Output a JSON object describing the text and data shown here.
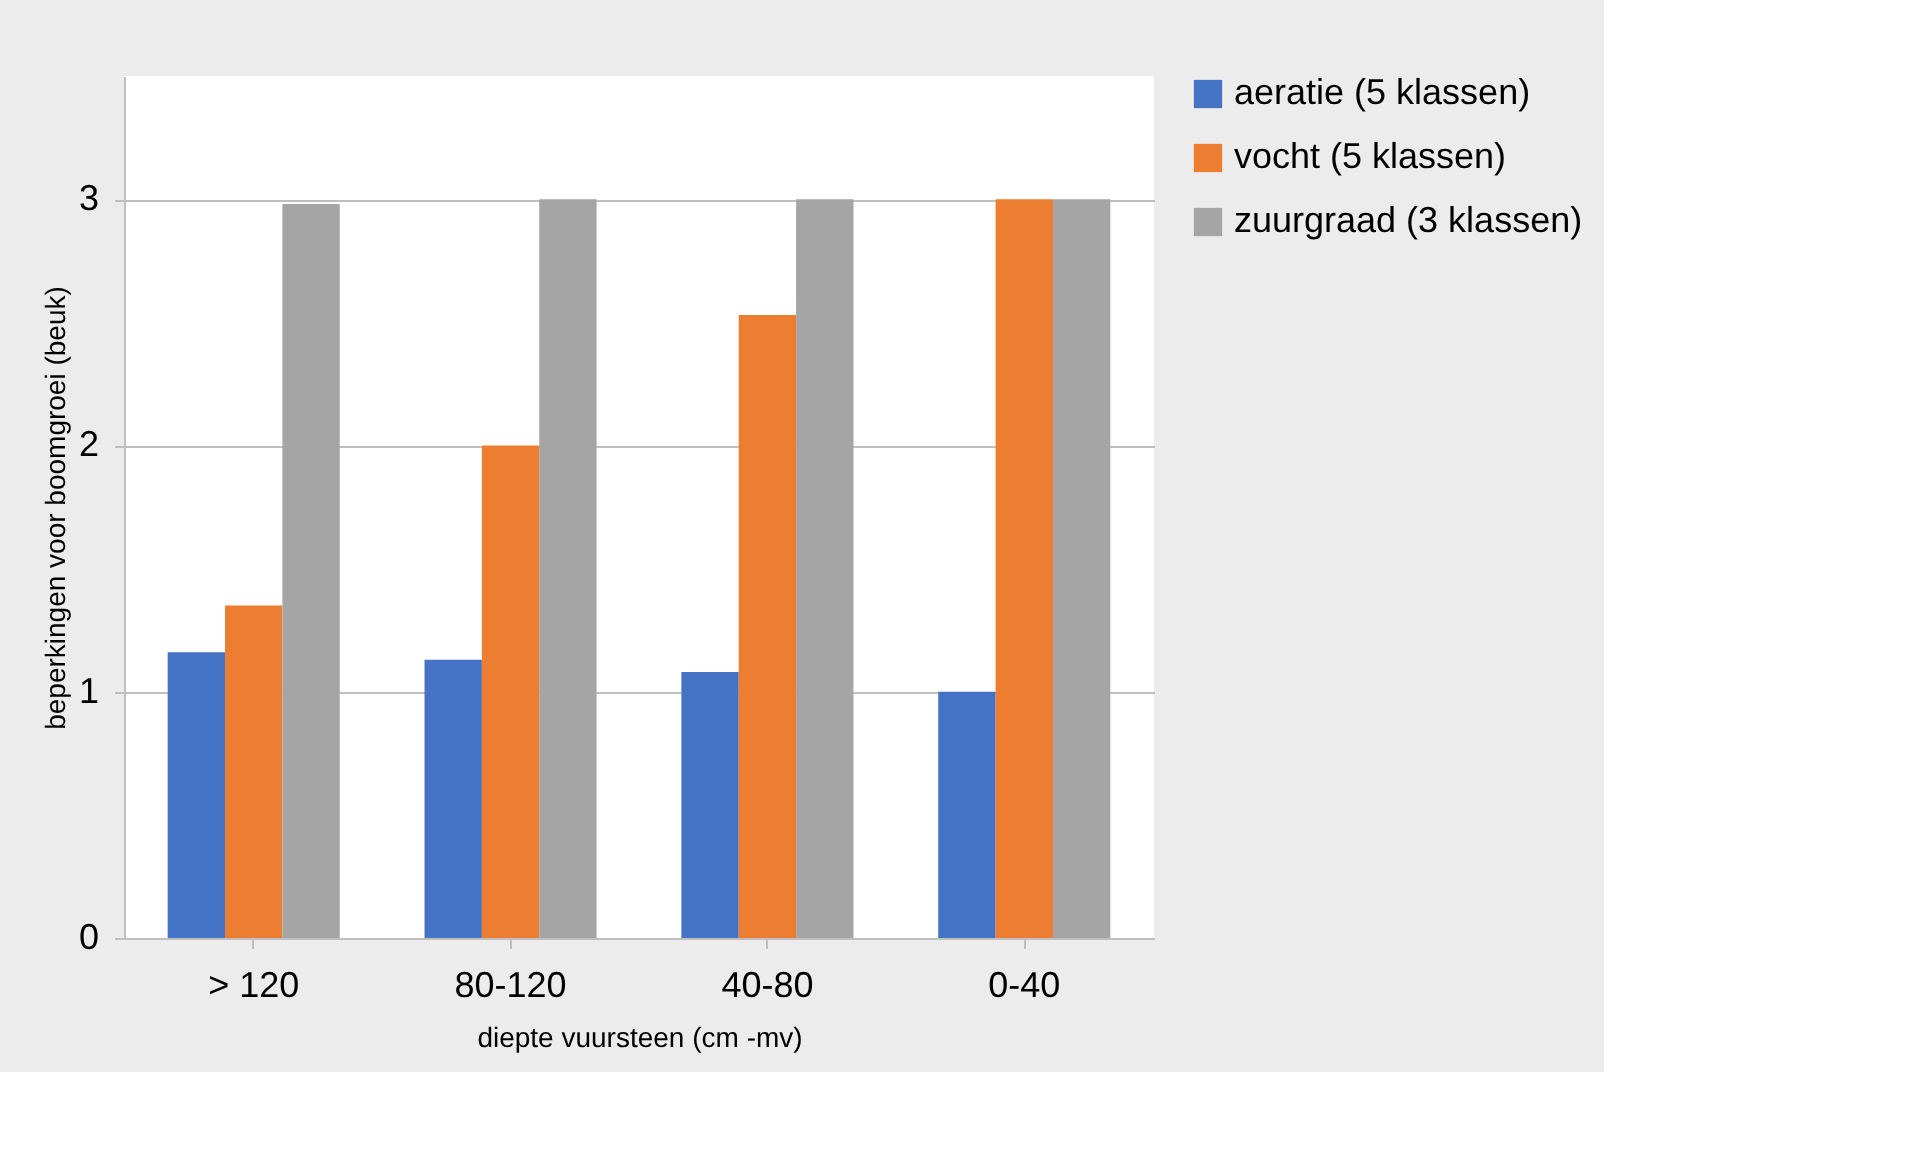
{
  "chart_data": {
    "type": "bar",
    "xlabel": "diepte vuursteen (cm -mv)",
    "ylabel": "beperkingen voor boomgroei (beuk)",
    "categories": [
      "> 120",
      "80-120",
      "40-80",
      "0-40"
    ],
    "series": [
      {
        "name": "aeratie (5 klassen)",
        "color": "#4472c4",
        "values": [
          1.16,
          1.13,
          1.08,
          1.0
        ]
      },
      {
        "name": "vocht (5 klassen)",
        "color": "#ed7d31",
        "values": [
          1.35,
          2.0,
          2.53,
          3.0
        ]
      },
      {
        "name": "zuurgraad (3 klassen)",
        "color": "#a5a5a5",
        "values": [
          2.98,
          3.0,
          3.0,
          3.0
        ]
      }
    ],
    "ylim": [
      0,
      3.5
    ],
    "yticks": [
      0,
      1,
      2,
      3
    ],
    "grid": "y",
    "legend": "right"
  }
}
